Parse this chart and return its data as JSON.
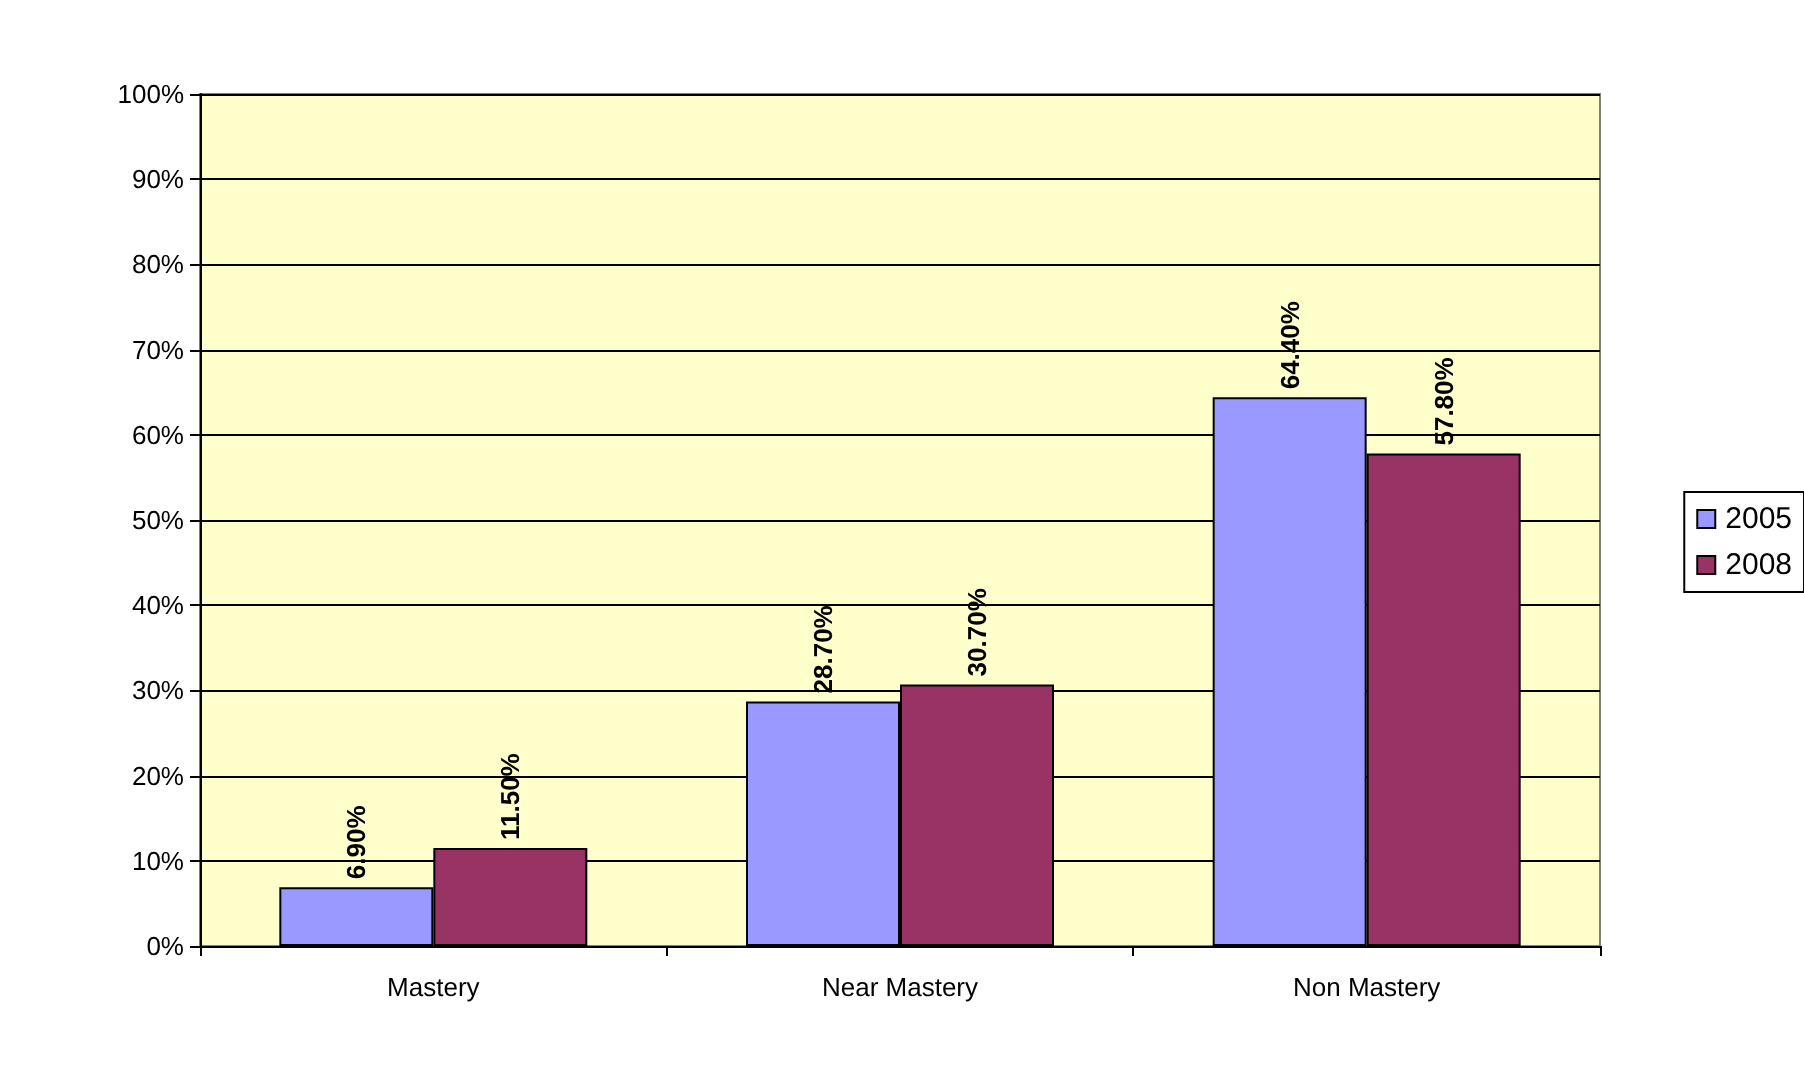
{
  "chart_data": {
    "type": "bar",
    "categories": [
      "Mastery",
      "Near Mastery",
      "Non Mastery"
    ],
    "series": [
      {
        "name": "2005",
        "color": "#9999ff",
        "values": [
          6.9,
          28.7,
          64.4
        ],
        "value_labels": [
          "6.90%",
          "28.70%",
          "64.40%"
        ]
      },
      {
        "name": "2008",
        "color": "#993366",
        "values": [
          11.5,
          30.7,
          57.8
        ],
        "value_labels": [
          "11.50%",
          "30.70%",
          "57.80%"
        ]
      }
    ],
    "ylim": [
      0,
      100
    ],
    "yticks": [
      {
        "value": 0,
        "label": "0%"
      },
      {
        "value": 10,
        "label": "10%"
      },
      {
        "value": 20,
        "label": "20%"
      },
      {
        "value": 30,
        "label": "30%"
      },
      {
        "value": 40,
        "label": "40%"
      },
      {
        "value": 50,
        "label": "50%"
      },
      {
        "value": 60,
        "label": "60%"
      },
      {
        "value": 70,
        "label": "70%"
      },
      {
        "value": 80,
        "label": "80%"
      },
      {
        "value": 90,
        "label": "90%"
      },
      {
        "value": 100,
        "label": "100%"
      }
    ],
    "grid": "y",
    "legend": "right"
  }
}
